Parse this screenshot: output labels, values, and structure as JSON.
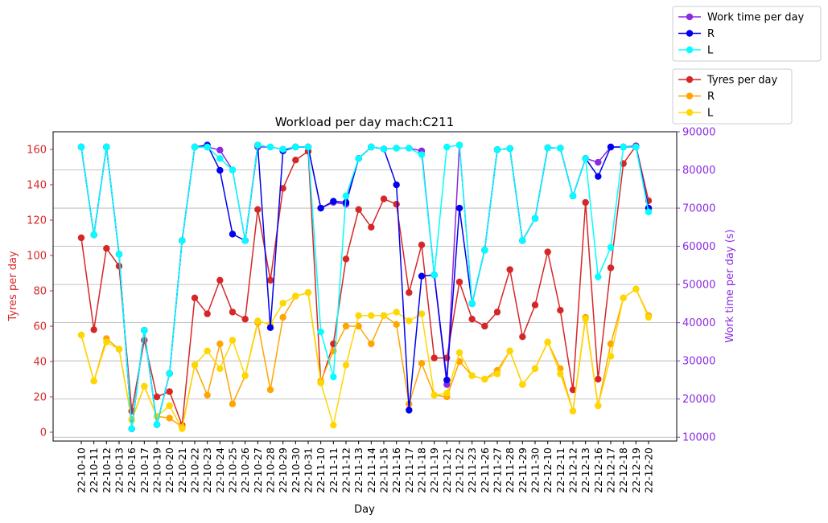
{
  "chart_data": {
    "type": "line",
    "title": "Workload per day mach:C211",
    "xlabel": "Day",
    "ylabel_left": "Tyres per day",
    "ylabel_right": "Work time per day (s)",
    "ylim_left": [
      -5,
      170
    ],
    "ylim_right": [
      9000,
      90000
    ],
    "yticks_left": [
      0,
      20,
      40,
      60,
      80,
      100,
      120,
      140,
      160
    ],
    "yticks_right": [
      10000,
      20000,
      30000,
      40000,
      50000,
      60000,
      70000,
      80000,
      90000
    ],
    "grid": "horizontal",
    "colors": {
      "left_axis": "#d62728",
      "right_axis": "#8a2be2"
    },
    "categories": [
      "22-10-10",
      "22-10-11",
      "22-10-12",
      "22-10-13",
      "22-10-16",
      "22-10-17",
      "22-10-19",
      "22-10-20",
      "22-10-21",
      "22-10-22",
      "22-10-23",
      "22-10-24",
      "22-10-25",
      "22-10-26",
      "22-10-27",
      "22-10-28",
      "22-10-29",
      "22-10-30",
      "22-10-31",
      "22-11-10",
      "22-11-11",
      "22-11-12",
      "22-11-13",
      "22-11-14",
      "22-11-15",
      "22-11-16",
      "22-11-17",
      "22-11-18",
      "22-11-19",
      "22-11-21",
      "22-11-22",
      "22-11-23",
      "22-11-26",
      "22-11-27",
      "22-11-28",
      "22-11-29",
      "22-11-30",
      "22-12-10",
      "22-12-11",
      "22-12-12",
      "22-12-13",
      "22-12-16",
      "22-12-17",
      "22-12-18",
      "22-12-19",
      "22-12-20"
    ],
    "legend_right_axis": [
      {
        "name": "Work time per day",
        "color": "#8a2be2"
      },
      {
        "name": "R",
        "color": "#0000ee"
      },
      {
        "name": "L",
        "color": "#00ffff"
      }
    ],
    "legend_left_axis": [
      {
        "name": "Tyres per day",
        "color": "#d62728"
      },
      {
        "name": "R",
        "color": "#ffa500"
      },
      {
        "name": "L",
        "color": "#ffd700"
      }
    ],
    "series_right": [
      {
        "name": "Work time per day",
        "color": "#8a2be2",
        "values": [
          86000,
          63000,
          86000,
          57900,
          12200,
          38000,
          13300,
          26700,
          61500,
          86000,
          86000,
          85200,
          80000,
          61500,
          86000,
          86000,
          85400,
          86000,
          86000,
          70000,
          71500,
          71000,
          83000,
          86000,
          85500,
          85700,
          85700,
          85000,
          52500,
          23800,
          86500,
          45000,
          59000,
          85300,
          85600,
          61500,
          67300,
          85800,
          85700,
          73200,
          83000,
          82000,
          86000,
          86000,
          86300,
          70000
        ]
      },
      {
        "name": "R",
        "color": "#0000ee",
        "values": [
          86000,
          63000,
          86000,
          57900,
          12200,
          38000,
          13300,
          26700,
          61500,
          86000,
          86500,
          79900,
          63200,
          61500,
          86500,
          38700,
          85000,
          86000,
          86000,
          70000,
          71800,
          71500,
          83000,
          86000,
          85500,
          76100,
          17100,
          52200,
          52500,
          25000,
          70000,
          45000,
          59000,
          85300,
          85600,
          61500,
          67300,
          85800,
          85700,
          73200,
          83000,
          78300,
          86000,
          86000,
          86000,
          70000
        ]
      },
      {
        "name": "L",
        "color": "#00ffff",
        "values": [
          86000,
          63000,
          86000,
          57900,
          12200,
          38000,
          13300,
          26700,
          61500,
          86000,
          86000,
          83000,
          80000,
          61500,
          86500,
          86000,
          85400,
          86000,
          86000,
          37600,
          25800,
          73200,
          83000,
          86000,
          85500,
          85700,
          85700,
          84000,
          52500,
          86000,
          86500,
          45000,
          59000,
          85300,
          85600,
          61500,
          67300,
          85800,
          85700,
          73200,
          83000,
          52000,
          59700,
          86000,
          86000,
          69000
        ]
      }
    ],
    "series_left": [
      {
        "name": "Tyres per day",
        "color": "#d62728",
        "values": [
          110,
          58,
          104,
          94,
          12,
          52,
          20,
          23,
          4,
          76,
          67,
          86,
          68,
          64,
          126,
          86,
          138,
          154,
          159,
          28,
          50,
          98,
          126,
          116,
          132,
          129,
          79,
          106,
          42,
          42,
          85,
          64,
          60,
          68,
          92,
          54,
          72,
          102,
          69,
          24,
          130,
          30,
          93,
          152,
          162,
          131
        ]
      },
      {
        "name": "R",
        "color": "#ffa500",
        "values": [
          55,
          29,
          53,
          47,
          7,
          26,
          9,
          8,
          3,
          38,
          21,
          50,
          16,
          32,
          62,
          24,
          65,
          77,
          79,
          29,
          46,
          60,
          60,
          50,
          66,
          61,
          16,
          39,
          21,
          20,
          40,
          32,
          30,
          35,
          46,
          27,
          36,
          51,
          36,
          12,
          65,
          15,
          50,
          76,
          81,
          66
        ]
      },
      {
        "name": "L",
        "color": "#ffd700",
        "values": [
          55,
          29,
          51,
          47,
          7,
          26,
          9,
          15,
          2,
          38,
          46,
          36,
          52,
          32,
          63,
          61,
          73,
          77,
          79,
          28,
          4,
          38,
          66,
          66,
          66,
          68,
          63,
          67,
          21,
          22,
          45,
          32,
          30,
          33,
          46,
          27,
          36,
          51,
          33,
          12,
          64,
          15,
          43,
          76,
          81,
          65
        ]
      }
    ]
  }
}
